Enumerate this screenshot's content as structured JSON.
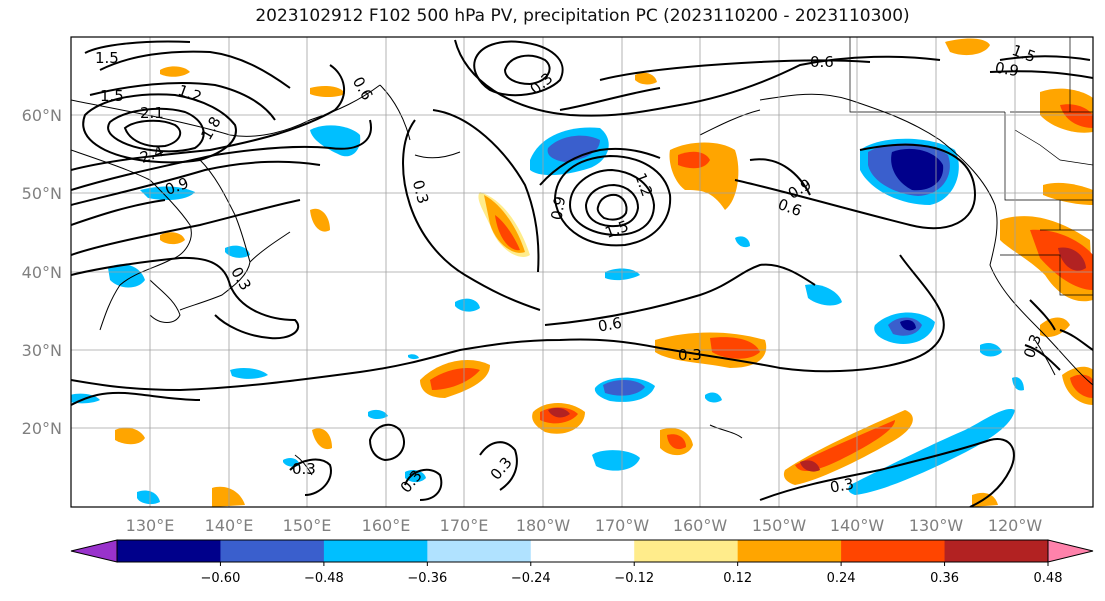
{
  "title": "2023102912 F102 500 hPa PV, precipitation PC (2023110200 - 2023110300)",
  "map": {
    "lat_labels": [
      {
        "text": "60°N",
        "lat": 60
      },
      {
        "text": "50°N",
        "lat": 50
      },
      {
        "text": "40°N",
        "lat": 40
      },
      {
        "text": "30°N",
        "lat": 30
      },
      {
        "text": "20°N",
        "lat": 20
      }
    ],
    "lon_labels": [
      "130°E",
      "140°E",
      "150°E",
      "160°E",
      "170°E",
      "180°W",
      "170°W",
      "160°W",
      "150°W",
      "140°W",
      "130°W",
      "120°W"
    ],
    "lon_range": [
      120,
      250
    ],
    "lat_range": [
      10,
      70
    ],
    "contour_labels": [
      "1.5",
      "1.5",
      "1.2",
      "2.1",
      "2.4",
      "1.8",
      "0.9",
      "0.6",
      "0.3",
      "0.3",
      "0.9",
      "1.2",
      "1.5",
      "0.6",
      "0.9",
      "0.6",
      "0.6",
      "0.3",
      "0.3",
      "0.3",
      "0.3",
      "0.3",
      "0.3",
      "1.5",
      "0.9",
      "0.3"
    ]
  },
  "colorbar": {
    "ticks": [
      "−0.60",
      "−0.48",
      "−0.36",
      "−0.24",
      "−0.12",
      "0.12",
      "0.24",
      "0.36",
      "0.48",
      "0.60"
    ],
    "colors": [
      "#9932cc",
      "#00008b",
      "#3a5fcd",
      "#00bfff",
      "#b0e2ff",
      "#ffffff",
      "#ffec8b",
      "#ffa500",
      "#ff4500",
      "#b22222",
      "#ff82ab"
    ]
  }
}
